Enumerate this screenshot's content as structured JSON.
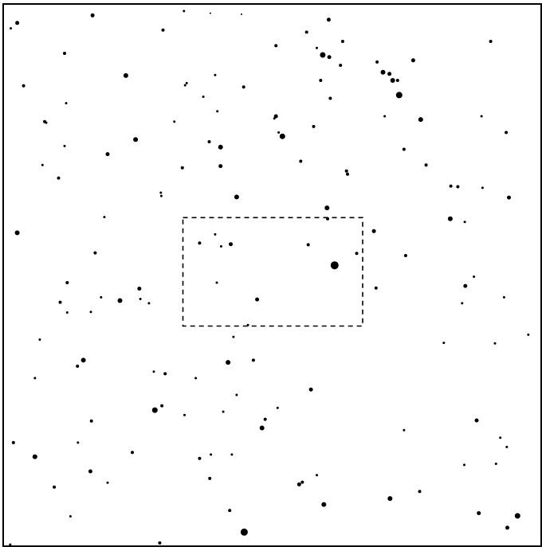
{
  "chart_data": {
    "type": "scatter",
    "title": "",
    "xlabel": "",
    "ylabel": "",
    "xlim": [
      0,
      1
    ],
    "ylim": [
      0,
      1
    ],
    "grid": false,
    "legend": "none",
    "color": "#000000",
    "field_of_view": {
      "x0": 0.334,
      "x1": 0.668,
      "y0": 0.394,
      "y1": 0.594,
      "style": "dashed"
    },
    "stars": [
      {
        "x": 0.026,
        "y": 0.035,
        "m": 5
      },
      {
        "x": 0.166,
        "y": 0.021,
        "m": 5
      },
      {
        "x": 0.336,
        "y": 0.013,
        "m": 3
      },
      {
        "x": 0.385,
        "y": 0.017,
        "m": 2
      },
      {
        "x": 0.443,
        "y": 0.019,
        "m": 2
      },
      {
        "x": 0.605,
        "y": 0.029,
        "m": 5
      },
      {
        "x": 0.014,
        "y": 0.045,
        "m": 3
      },
      {
        "x": 0.297,
        "y": 0.048,
        "m": 4
      },
      {
        "x": 0.631,
        "y": 0.069,
        "m": 4
      },
      {
        "x": 0.507,
        "y": 0.077,
        "m": 4
      },
      {
        "x": 0.564,
        "y": 0.052,
        "m": 4
      },
      {
        "x": 0.583,
        "y": 0.081,
        "m": 3
      },
      {
        "x": 0.594,
        "y": 0.094,
        "m": 7
      },
      {
        "x": 0.606,
        "y": 0.098,
        "m": 5
      },
      {
        "x": 0.627,
        "y": 0.113,
        "m": 4
      },
      {
        "x": 0.906,
        "y": 0.069,
        "m": 4
      },
      {
        "x": 0.114,
        "y": 0.091,
        "m": 4
      },
      {
        "x": 0.762,
        "y": 0.104,
        "m": 5
      },
      {
        "x": 0.695,
        "y": 0.107,
        "m": 4
      },
      {
        "x": 0.706,
        "y": 0.126,
        "m": 6
      },
      {
        "x": 0.718,
        "y": 0.129,
        "m": 5
      },
      {
        "x": 0.724,
        "y": 0.141,
        "m": 6
      },
      {
        "x": 0.733,
        "y": 0.141,
        "m": 4
      },
      {
        "x": 0.736,
        "y": 0.168,
        "m": 8
      },
      {
        "x": 0.228,
        "y": 0.132,
        "m": 6
      },
      {
        "x": 0.394,
        "y": 0.131,
        "m": 3
      },
      {
        "x": 0.341,
        "y": 0.146,
        "m": 3
      },
      {
        "x": 0.338,
        "y": 0.15,
        "m": 3
      },
      {
        "x": 0.447,
        "y": 0.153,
        "m": 4
      },
      {
        "x": 0.59,
        "y": 0.141,
        "m": 4
      },
      {
        "x": 0.608,
        "y": 0.174,
        "m": 4
      },
      {
        "x": 0.038,
        "y": 0.151,
        "m": 4
      },
      {
        "x": 0.117,
        "y": 0.183,
        "m": 3
      },
      {
        "x": 0.372,
        "y": 0.171,
        "m": 3
      },
      {
        "x": 0.398,
        "y": 0.198,
        "m": 3
      },
      {
        "x": 0.776,
        "y": 0.213,
        "m": 6
      },
      {
        "x": 0.507,
        "y": 0.207,
        "m": 5
      },
      {
        "x": 0.504,
        "y": 0.211,
        "m": 3
      },
      {
        "x": 0.077,
        "y": 0.217,
        "m": 4
      },
      {
        "x": 0.08,
        "y": 0.219,
        "m": 3
      },
      {
        "x": 0.318,
        "y": 0.217,
        "m": 3
      },
      {
        "x": 0.709,
        "y": 0.207,
        "m": 3
      },
      {
        "x": 0.889,
        "y": 0.207,
        "m": 3
      },
      {
        "x": 0.577,
        "y": 0.226,
        "m": 4
      },
      {
        "x": 0.519,
        "y": 0.244,
        "m": 7
      },
      {
        "x": 0.512,
        "y": 0.237,
        "m": 3
      },
      {
        "x": 0.935,
        "y": 0.237,
        "m": 4
      },
      {
        "x": 0.246,
        "y": 0.25,
        "m": 6
      },
      {
        "x": 0.383,
        "y": 0.254,
        "m": 4
      },
      {
        "x": 0.404,
        "y": 0.264,
        "m": 6
      },
      {
        "x": 0.114,
        "y": 0.262,
        "m": 3
      },
      {
        "x": 0.194,
        "y": 0.277,
        "m": 5
      },
      {
        "x": 0.745,
        "y": 0.268,
        "m": 4
      },
      {
        "x": 0.073,
        "y": 0.297,
        "m": 3
      },
      {
        "x": 0.333,
        "y": 0.302,
        "m": 4
      },
      {
        "x": 0.404,
        "y": 0.299,
        "m": 5
      },
      {
        "x": 0.553,
        "y": 0.29,
        "m": 4
      },
      {
        "x": 0.786,
        "y": 0.297,
        "m": 4
      },
      {
        "x": 0.103,
        "y": 0.321,
        "m": 4
      },
      {
        "x": 0.638,
        "y": 0.308,
        "m": 4
      },
      {
        "x": 0.64,
        "y": 0.314,
        "m": 4
      },
      {
        "x": 0.293,
        "y": 0.348,
        "m": 3
      },
      {
        "x": 0.294,
        "y": 0.354,
        "m": 3
      },
      {
        "x": 0.434,
        "y": 0.356,
        "m": 6
      },
      {
        "x": 0.832,
        "y": 0.336,
        "m": 4
      },
      {
        "x": 0.845,
        "y": 0.337,
        "m": 4
      },
      {
        "x": 0.891,
        "y": 0.339,
        "m": 3
      },
      {
        "x": 0.94,
        "y": 0.357,
        "m": 5
      },
      {
        "x": 0.602,
        "y": 0.376,
        "m": 6
      },
      {
        "x": 0.603,
        "y": 0.396,
        "m": 4
      },
      {
        "x": 0.831,
        "y": 0.396,
        "m": 6
      },
      {
        "x": 0.858,
        "y": 0.402,
        "m": 3
      },
      {
        "x": 0.188,
        "y": 0.393,
        "m": 3
      },
      {
        "x": 0.026,
        "y": 0.422,
        "m": 6
      },
      {
        "x": 0.689,
        "y": 0.419,
        "m": 5
      },
      {
        "x": 0.394,
        "y": 0.425,
        "m": 3
      },
      {
        "x": 0.365,
        "y": 0.441,
        "m": 4
      },
      {
        "x": 0.405,
        "y": 0.447,
        "m": 3
      },
      {
        "x": 0.423,
        "y": 0.443,
        "m": 5
      },
      {
        "x": 0.567,
        "y": 0.444,
        "m": 4
      },
      {
        "x": 0.171,
        "y": 0.459,
        "m": 4
      },
      {
        "x": 0.657,
        "y": 0.46,
        "m": 4
      },
      {
        "x": 0.748,
        "y": 0.464,
        "m": 4
      },
      {
        "x": 0.616,
        "y": 0.482,
        "m": 10
      },
      {
        "x": 0.397,
        "y": 0.514,
        "m": 3
      },
      {
        "x": 0.119,
        "y": 0.514,
        "m": 4
      },
      {
        "x": 0.875,
        "y": 0.503,
        "m": 3
      },
      {
        "x": 0.693,
        "y": 0.524,
        "m": 4
      },
      {
        "x": 0.859,
        "y": 0.52,
        "m": 5
      },
      {
        "x": 0.253,
        "y": 0.525,
        "m": 5
      },
      {
        "x": 0.106,
        "y": 0.55,
        "m": 4
      },
      {
        "x": 0.182,
        "y": 0.541,
        "m": 3
      },
      {
        "x": 0.217,
        "y": 0.547,
        "m": 6
      },
      {
        "x": 0.255,
        "y": 0.544,
        "m": 3
      },
      {
        "x": 0.271,
        "y": 0.552,
        "m": 3
      },
      {
        "x": 0.472,
        "y": 0.545,
        "m": 5
      },
      {
        "x": 0.931,
        "y": 0.541,
        "m": 3
      },
      {
        "x": 0.163,
        "y": 0.568,
        "m": 3
      },
      {
        "x": 0.119,
        "y": 0.569,
        "m": 3
      },
      {
        "x": 0.853,
        "y": 0.552,
        "m": 3
      },
      {
        "x": 0.455,
        "y": 0.592,
        "m": 3
      },
      {
        "x": 0.976,
        "y": 0.61,
        "m": 3
      },
      {
        "x": 0.428,
        "y": 0.614,
        "m": 3
      },
      {
        "x": 0.068,
        "y": 0.619,
        "m": 3
      },
      {
        "x": 0.819,
        "y": 0.625,
        "m": 3
      },
      {
        "x": 0.914,
        "y": 0.626,
        "m": 3
      },
      {
        "x": 0.149,
        "y": 0.657,
        "m": 6
      },
      {
        "x": 0.138,
        "y": 0.668,
        "m": 4
      },
      {
        "x": 0.418,
        "y": 0.661,
        "m": 6
      },
      {
        "x": 0.465,
        "y": 0.657,
        "m": 4
      },
      {
        "x": 0.28,
        "y": 0.678,
        "m": 3
      },
      {
        "x": 0.301,
        "y": 0.682,
        "m": 4
      },
      {
        "x": 0.358,
        "y": 0.69,
        "m": 3
      },
      {
        "x": 0.059,
        "y": 0.69,
        "m": 3
      },
      {
        "x": 0.572,
        "y": 0.711,
        "m": 5
      },
      {
        "x": 0.434,
        "y": 0.721,
        "m": 3
      },
      {
        "x": 0.282,
        "y": 0.749,
        "m": 7
      },
      {
        "x": 0.295,
        "y": 0.741,
        "m": 4
      },
      {
        "x": 0.337,
        "y": 0.758,
        "m": 3
      },
      {
        "x": 0.409,
        "y": 0.752,
        "m": 3
      },
      {
        "x": 0.51,
        "y": 0.745,
        "m": 3
      },
      {
        "x": 0.164,
        "y": 0.769,
        "m": 4
      },
      {
        "x": 0.487,
        "y": 0.766,
        "m": 4
      },
      {
        "x": 0.481,
        "y": 0.782,
        "m": 6
      },
      {
        "x": 0.88,
        "y": 0.768,
        "m": 5
      },
      {
        "x": 0.745,
        "y": 0.786,
        "m": 3
      },
      {
        "x": 0.019,
        "y": 0.809,
        "m": 4
      },
      {
        "x": 0.139,
        "y": 0.809,
        "m": 3
      },
      {
        "x": 0.924,
        "y": 0.8,
        "m": 3
      },
      {
        "x": 0.936,
        "y": 0.817,
        "m": 3
      },
      {
        "x": 0.059,
        "y": 0.835,
        "m": 6
      },
      {
        "x": 0.24,
        "y": 0.827,
        "m": 4
      },
      {
        "x": 0.365,
        "y": 0.838,
        "m": 4
      },
      {
        "x": 0.386,
        "y": 0.831,
        "m": 3
      },
      {
        "x": 0.425,
        "y": 0.831,
        "m": 3
      },
      {
        "x": 0.857,
        "y": 0.85,
        "m": 3
      },
      {
        "x": 0.916,
        "y": 0.848,
        "m": 3
      },
      {
        "x": 0.162,
        "y": 0.862,
        "m": 5
      },
      {
        "x": 0.384,
        "y": 0.875,
        "m": 4
      },
      {
        "x": 0.583,
        "y": 0.869,
        "m": 3
      },
      {
        "x": 0.194,
        "y": 0.883,
        "m": 3
      },
      {
        "x": 0.095,
        "y": 0.891,
        "m": 4
      },
      {
        "x": 0.55,
        "y": 0.886,
        "m": 5
      },
      {
        "x": 0.556,
        "y": 0.882,
        "m": 4
      },
      {
        "x": 0.774,
        "y": 0.899,
        "m": 4
      },
      {
        "x": 0.719,
        "y": 0.912,
        "m": 6
      },
      {
        "x": 0.596,
        "y": 0.923,
        "m": 6
      },
      {
        "x": 0.421,
        "y": 0.934,
        "m": 4
      },
      {
        "x": 0.884,
        "y": 0.939,
        "m": 5
      },
      {
        "x": 0.125,
        "y": 0.945,
        "m": 3
      },
      {
        "x": 0.956,
        "y": 0.944,
        "m": 7
      },
      {
        "x": 0.937,
        "y": 0.966,
        "m": 5
      },
      {
        "x": 0.448,
        "y": 0.974,
        "m": 9
      },
      {
        "x": 0.291,
        "y": 0.994,
        "m": 4
      },
      {
        "x": 0.013,
        "y": 0.997,
        "m": 3
      }
    ]
  }
}
